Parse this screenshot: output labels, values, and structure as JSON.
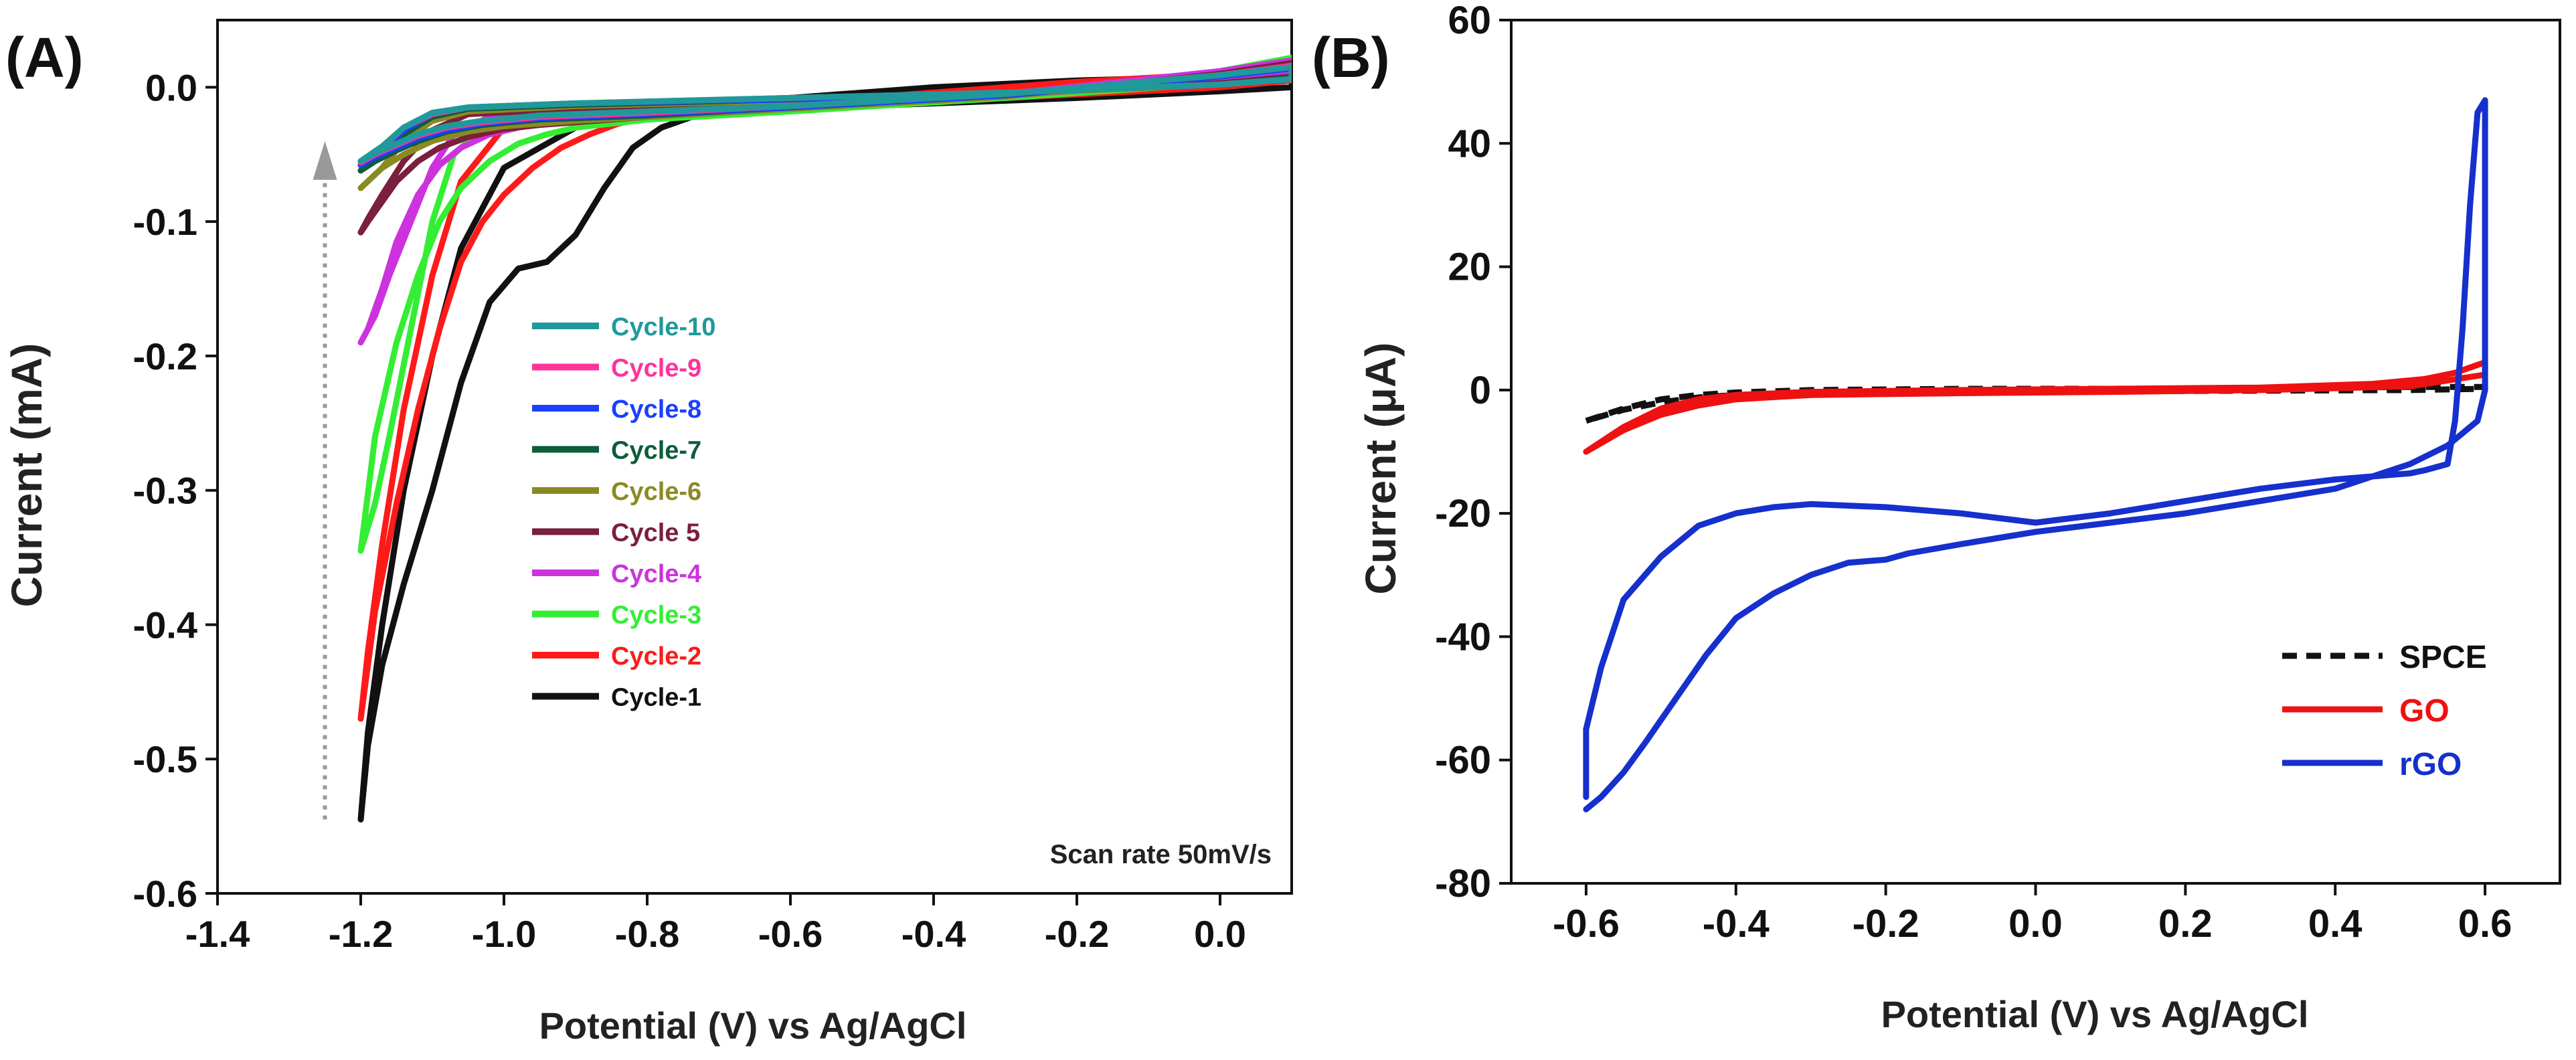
{
  "chart_data": [
    {
      "panel_label": "(A)",
      "type": "line",
      "xlabel": "Potential (V) vs Ag/AgCl",
      "ylabel": "Current (mA)",
      "xlim": [
        -1.4,
        0.1
      ],
      "ylim": [
        -0.6,
        0.05
      ],
      "xticks": [
        -1.4,
        -1.2,
        -1.0,
        -0.8,
        -0.6,
        -0.4,
        -0.2,
        0.0
      ],
      "xtick_labels": [
        "-1.4",
        "-1.2",
        "-1.0",
        "-0.8",
        "-0.6",
        "-0.4",
        "-0.2",
        "0.0"
      ],
      "yticks": [
        0.0,
        -0.1,
        -0.2,
        -0.3,
        -0.4,
        -0.5,
        -0.6
      ],
      "ytick_labels": [
        "0.0",
        "-0.1",
        "-0.2",
        "-0.3",
        "-0.4",
        "-0.5",
        "-0.6"
      ],
      "annotation": "Scan rate 50mV/s",
      "arrow": {
        "x": -1.25,
        "y_from": -0.545,
        "y_to": -0.045,
        "style": "dotted",
        "color": "#999999"
      },
      "legend_placement": "center",
      "grid": false,
      "series": [
        {
          "name": "Cycle-1",
          "color": "#111111",
          "x": [
            -1.2,
            -1.19,
            -1.17,
            -1.14,
            -1.1,
            -1.06,
            -1.02,
            -0.98,
            -0.94,
            -0.9,
            -0.86,
            -0.82,
            -0.78,
            -0.7,
            -0.6,
            -0.4,
            -0.2,
            0.0,
            0.1,
            0.1,
            0.0,
            -0.2,
            -0.4,
            -0.6,
            -0.8,
            -0.9,
            -1.0,
            -1.06,
            -1.1,
            -1.14,
            -1.17,
            -1.19,
            -1.2
          ],
          "y": [
            -0.545,
            -0.49,
            -0.43,
            -0.37,
            -0.3,
            -0.22,
            -0.16,
            -0.135,
            -0.13,
            -0.11,
            -0.075,
            -0.045,
            -0.03,
            -0.015,
            -0.008,
            0.0,
            0.005,
            0.008,
            0.01,
            0.0,
            -0.003,
            -0.008,
            -0.012,
            -0.016,
            -0.02,
            -0.03,
            -0.06,
            -0.12,
            -0.2,
            -0.3,
            -0.4,
            -0.48,
            -0.545
          ]
        },
        {
          "name": "Cycle-2",
          "color": "#ff1a1a",
          "x": [
            -1.2,
            -1.18,
            -1.15,
            -1.12,
            -1.09,
            -1.06,
            -1.03,
            -1.0,
            -0.96,
            -0.92,
            -0.88,
            -0.84,
            -0.8,
            -0.7,
            -0.5,
            -0.2,
            0.0,
            0.1,
            0.1,
            0.0,
            -0.3,
            -0.6,
            -0.9,
            -1.0,
            -1.06,
            -1.1,
            -1.14,
            -1.17,
            -1.19,
            -1.2
          ],
          "y": [
            -0.47,
            -0.39,
            -0.31,
            -0.24,
            -0.18,
            -0.13,
            -0.1,
            -0.08,
            -0.06,
            -0.045,
            -0.035,
            -0.027,
            -0.022,
            -0.015,
            -0.008,
            0.004,
            0.01,
            0.015,
            0.005,
            0.0,
            -0.008,
            -0.015,
            -0.02,
            -0.03,
            -0.07,
            -0.14,
            -0.24,
            -0.34,
            -0.42,
            -0.47
          ]
        },
        {
          "name": "Cycle-3",
          "color": "#33ee33",
          "x": [
            -1.2,
            -1.18,
            -1.15,
            -1.12,
            -1.09,
            -1.06,
            -1.02,
            -0.98,
            -0.94,
            -0.9,
            -0.85,
            -0.8,
            -0.6,
            -0.3,
            0.0,
            0.1,
            0.1,
            0.0,
            -0.3,
            -0.6,
            -0.9,
            -1.02,
            -1.07,
            -1.1,
            -1.13,
            -1.16,
            -1.18,
            -1.2
          ],
          "y": [
            -0.345,
            -0.26,
            -0.19,
            -0.14,
            -0.1,
            -0.075,
            -0.055,
            -0.042,
            -0.035,
            -0.03,
            -0.027,
            -0.024,
            -0.018,
            -0.008,
            0.012,
            0.022,
            0.01,
            0.003,
            -0.008,
            -0.015,
            -0.02,
            -0.025,
            -0.05,
            -0.1,
            -0.18,
            -0.26,
            -0.31,
            -0.345
          ]
        },
        {
          "name": "Cycle-4",
          "color": "#cc33dd",
          "x": [
            -1.2,
            -1.19,
            -1.17,
            -1.15,
            -1.12,
            -1.09,
            -1.06,
            -1.02,
            -0.98,
            -0.94,
            -0.9,
            -0.8,
            -0.6,
            -0.3,
            0.0,
            0.1,
            0.1,
            0.0,
            -0.3,
            -0.6,
            -0.9,
            -1.02,
            -1.07,
            -1.1,
            -1.13,
            -1.16,
            -1.18,
            -1.2
          ],
          "y": [
            -0.19,
            -0.18,
            -0.15,
            -0.115,
            -0.08,
            -0.058,
            -0.045,
            -0.035,
            -0.03,
            -0.027,
            -0.024,
            -0.02,
            -0.015,
            -0.005,
            0.012,
            0.02,
            0.01,
            0.004,
            -0.006,
            -0.012,
            -0.018,
            -0.022,
            -0.035,
            -0.06,
            -0.1,
            -0.14,
            -0.17,
            -0.19
          ]
        },
        {
          "name": "Cycle 5",
          "color": "#7a1f3d",
          "x": [
            -1.2,
            -1.19,
            -1.17,
            -1.15,
            -1.12,
            -1.09,
            -1.05,
            -1.0,
            -0.95,
            -0.9,
            -0.8,
            -0.6,
            -0.3,
            0.0,
            0.1,
            0.1,
            0.0,
            -0.3,
            -0.6,
            -0.9,
            -1.05,
            -1.1,
            -1.14,
            -1.17,
            -1.19,
            -1.2
          ],
          "y": [
            -0.108,
            -0.1,
            -0.085,
            -0.07,
            -0.055,
            -0.045,
            -0.037,
            -0.031,
            -0.028,
            -0.026,
            -0.022,
            -0.016,
            -0.007,
            0.01,
            0.018,
            0.008,
            0.003,
            -0.005,
            -0.011,
            -0.016,
            -0.02,
            -0.032,
            -0.055,
            -0.08,
            -0.098,
            -0.108
          ]
        },
        {
          "name": "Cycle-6",
          "color": "#8a8a22",
          "x": [
            -1.2,
            -1.19,
            -1.17,
            -1.14,
            -1.1,
            -1.05,
            -1.0,
            -0.9,
            -0.8,
            -0.6,
            -0.3,
            0.0,
            0.1,
            0.1,
            0.0,
            -0.3,
            -0.6,
            -0.9,
            -1.05,
            -1.1,
            -1.14,
            -1.17,
            -1.2
          ],
          "y": [
            -0.075,
            -0.07,
            -0.06,
            -0.05,
            -0.04,
            -0.033,
            -0.029,
            -0.025,
            -0.022,
            -0.016,
            -0.007,
            0.008,
            0.016,
            0.007,
            0.002,
            -0.005,
            -0.01,
            -0.014,
            -0.018,
            -0.025,
            -0.04,
            -0.06,
            -0.075
          ]
        },
        {
          "name": "Cycle-7",
          "color": "#0d5c3a",
          "x": [
            -1.2,
            -1.18,
            -1.15,
            -1.12,
            -1.08,
            -1.03,
            -0.95,
            -0.8,
            -0.6,
            -0.3,
            0.0,
            0.1,
            0.1,
            0.0,
            -0.3,
            -0.6,
            -0.9,
            -1.05,
            -1.1,
            -1.14,
            -1.17,
            -1.2
          ],
          "y": [
            -0.062,
            -0.055,
            -0.047,
            -0.04,
            -0.033,
            -0.028,
            -0.024,
            -0.021,
            -0.015,
            -0.006,
            0.008,
            0.015,
            0.007,
            0.002,
            -0.004,
            -0.009,
            -0.013,
            -0.016,
            -0.022,
            -0.035,
            -0.05,
            -0.062
          ]
        },
        {
          "name": "Cycle-8",
          "color": "#1a3fff",
          "x": [
            -1.2,
            -1.18,
            -1.15,
            -1.12,
            -1.08,
            -1.03,
            -0.95,
            -0.8,
            -0.6,
            -0.3,
            0.0,
            0.1,
            0.1,
            0.0,
            -0.3,
            -0.6,
            -0.9,
            -1.05,
            -1.1,
            -1.14,
            -1.17,
            -1.2
          ],
          "y": [
            -0.058,
            -0.052,
            -0.045,
            -0.038,
            -0.032,
            -0.027,
            -0.023,
            -0.02,
            -0.015,
            -0.006,
            0.008,
            0.014,
            0.006,
            0.002,
            -0.004,
            -0.009,
            -0.012,
            -0.015,
            -0.02,
            -0.032,
            -0.047,
            -0.058
          ]
        },
        {
          "name": "Cycle-9",
          "color": "#ff3399",
          "x": [
            -1.2,
            -1.18,
            -1.15,
            -1.12,
            -1.08,
            -1.03,
            -0.95,
            -0.8,
            -0.6,
            -0.3,
            0.0,
            0.1,
            0.1,
            0.0,
            -0.3,
            -0.6,
            -0.9,
            -1.05,
            -1.1,
            -1.14,
            -1.17,
            -1.2
          ],
          "y": [
            -0.056,
            -0.05,
            -0.043,
            -0.036,
            -0.03,
            -0.026,
            -0.022,
            -0.019,
            -0.014,
            -0.005,
            0.009,
            0.016,
            0.006,
            0.002,
            -0.004,
            -0.008,
            -0.012,
            -0.015,
            -0.02,
            -0.03,
            -0.045,
            -0.056
          ]
        },
        {
          "name": "Cycle-10",
          "color": "#20999a",
          "x": [
            -1.2,
            -1.18,
            -1.15,
            -1.12,
            -1.08,
            -1.03,
            -0.95,
            -0.8,
            -0.6,
            -0.3,
            0.0,
            0.1,
            0.1,
            0.0,
            -0.3,
            -0.6,
            -0.9,
            -1.05,
            -1.1,
            -1.14,
            -1.17,
            -1.2
          ],
          "y": [
            -0.055,
            -0.049,
            -0.042,
            -0.035,
            -0.029,
            -0.025,
            -0.021,
            -0.018,
            -0.014,
            -0.005,
            0.009,
            0.015,
            0.006,
            0.002,
            -0.004,
            -0.008,
            -0.012,
            -0.015,
            -0.019,
            -0.03,
            -0.044,
            -0.055
          ]
        }
      ]
    },
    {
      "panel_label": "(B)",
      "type": "line",
      "xlabel": "Potential (V) vs Ag/AgCl",
      "ylabel": "Current (μA)",
      "xlim": [
        -0.7,
        0.7
      ],
      "ylim": [
        -80,
        60
      ],
      "xticks": [
        -0.6,
        -0.4,
        -0.2,
        0.0,
        0.2,
        0.4,
        0.6
      ],
      "xtick_labels": [
        "-0.6",
        "-0.4",
        "-0.2",
        "0.0",
        "0.2",
        "0.4",
        "0.6"
      ],
      "yticks": [
        60,
        40,
        20,
        0,
        -20,
        -40,
        -60,
        -80
      ],
      "ytick_labels": [
        "60",
        "40",
        "20",
        "0",
        "-20",
        "-40",
        "-60",
        "-80"
      ],
      "legend_placement": "lower-right",
      "grid": false,
      "series": [
        {
          "name": "SPCE",
          "color": "#111111",
          "dashed": true,
          "x": [
            -0.6,
            -0.55,
            -0.5,
            -0.45,
            -0.4,
            -0.3,
            -0.1,
            0.1,
            0.3,
            0.5,
            0.6,
            0.6,
            0.5,
            0.3,
            0.1,
            -0.1,
            -0.3,
            -0.4,
            -0.45,
            -0.5,
            -0.55,
            -0.6
          ],
          "y": [
            -5,
            -3,
            -1.5,
            -0.8,
            -0.4,
            0.0,
            0.2,
            0.2,
            0.3,
            0.5,
            0.5,
            0.2,
            0.0,
            -0.1,
            -0.2,
            -0.3,
            -0.5,
            -0.8,
            -1.2,
            -2.0,
            -3.2,
            -5
          ]
        },
        {
          "name": "GO",
          "color": "#ee1111",
          "x": [
            -0.6,
            -0.55,
            -0.5,
            -0.45,
            -0.4,
            -0.3,
            -0.1,
            0.1,
            0.3,
            0.45,
            0.52,
            0.56,
            0.6,
            0.6,
            0.5,
            0.3,
            0.1,
            -0.1,
            -0.3,
            -0.4,
            -0.45,
            -0.5,
            -0.55,
            -0.6
          ],
          "y": [
            -10,
            -6,
            -3,
            -1.5,
            -0.8,
            -0.3,
            0.0,
            0.2,
            0.4,
            1.0,
            1.8,
            2.8,
            4.5,
            2.5,
            0.6,
            0.0,
            -0.3,
            -0.5,
            -0.8,
            -1.5,
            -2.5,
            -4.0,
            -6.5,
            -10
          ]
        },
        {
          "name": "rGO",
          "color": "#1530cc",
          "x": [
            -0.6,
            -0.58,
            -0.55,
            -0.52,
            -0.48,
            -0.44,
            -0.4,
            -0.35,
            -0.3,
            -0.25,
            -0.2,
            -0.17,
            -0.1,
            -0.05,
            0.0,
            0.1,
            0.2,
            0.3,
            0.4,
            0.5,
            0.55,
            0.59,
            0.6,
            0.6,
            0.59,
            0.58,
            0.57,
            0.56,
            0.55,
            0.52,
            0.5,
            0.45,
            0.4,
            0.3,
            0.2,
            0.1,
            0.0,
            -0.1,
            -0.2,
            -0.3,
            -0.35,
            -0.4,
            -0.45,
            -0.5,
            -0.55,
            -0.58,
            -0.6,
            -0.6
          ],
          "y": [
            -68,
            -66,
            -62,
            -57,
            -50,
            -43,
            -37,
            -33,
            -30,
            -28,
            -27.5,
            -26.5,
            -25,
            -24,
            -23,
            -21.5,
            -20,
            -18,
            -16,
            -12,
            -9,
            -5,
            0,
            47,
            45,
            30,
            10,
            -5,
            -12,
            -13,
            -13.5,
            -14,
            -14.5,
            -16,
            -18,
            -20,
            -21.5,
            -20,
            -19,
            -18.5,
            -19,
            -20,
            -22,
            -27,
            -34,
            -45,
            -55,
            -66
          ]
        }
      ]
    }
  ]
}
